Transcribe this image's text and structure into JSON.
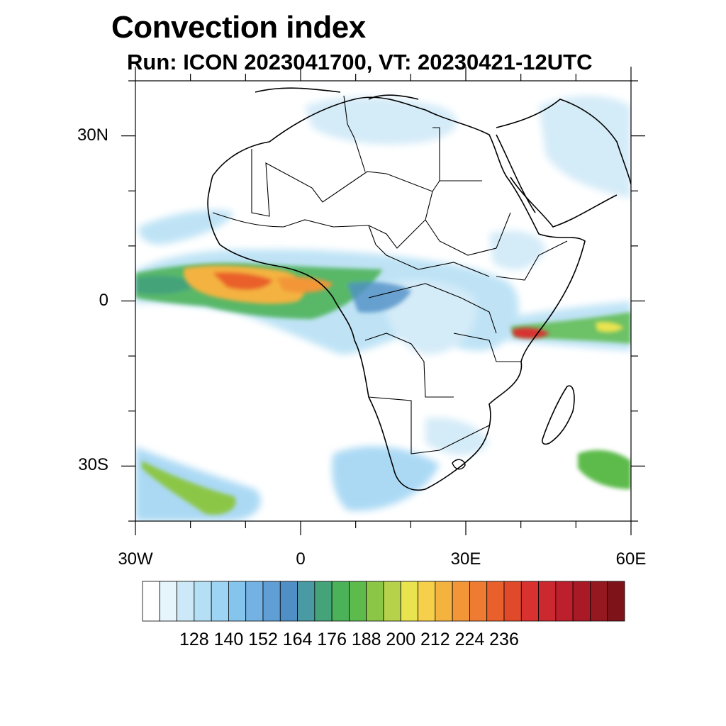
{
  "title": "Convection index",
  "subtitle": "Run: ICON 2023041700,  VT: 20230421-12UTC",
  "axes": {
    "lat_ticks": [
      {
        "label": "30N",
        "value": 30
      },
      {
        "label": "0",
        "value": 0
      },
      {
        "label": "30S",
        "value": -30
      }
    ],
    "lon_ticks": [
      {
        "label": "30W",
        "value": -30
      },
      {
        "label": "0",
        "value": 0
      },
      {
        "label": "30E",
        "value": 30
      },
      {
        "label": "60E",
        "value": 60
      }
    ],
    "lon_range": [
      -30,
      60
    ],
    "lat_range": [
      -40,
      40
    ]
  },
  "colorbar": {
    "labels": [
      "128",
      "140",
      "152",
      "164",
      "176",
      "188",
      "200",
      "212",
      "224",
      "236"
    ],
    "colors": [
      "#ffffff",
      "#e6f4fb",
      "#cde8f7",
      "#b4dff4",
      "#9dd3f3",
      "#85c4ec",
      "#73b2e2",
      "#5f9fd6",
      "#4f8fc6",
      "#4a9aa4",
      "#45a37a",
      "#4cb25a",
      "#5dbb4c",
      "#8cc646",
      "#b6d24a",
      "#e9e350",
      "#f6cf4b",
      "#f4b23f",
      "#f29637",
      "#ef7a31",
      "#e9602c",
      "#e04a2b",
      "#d93030",
      "#cc2830",
      "#bd1f2c",
      "#aa1a26",
      "#951820",
      "#7f131a"
    ]
  }
}
